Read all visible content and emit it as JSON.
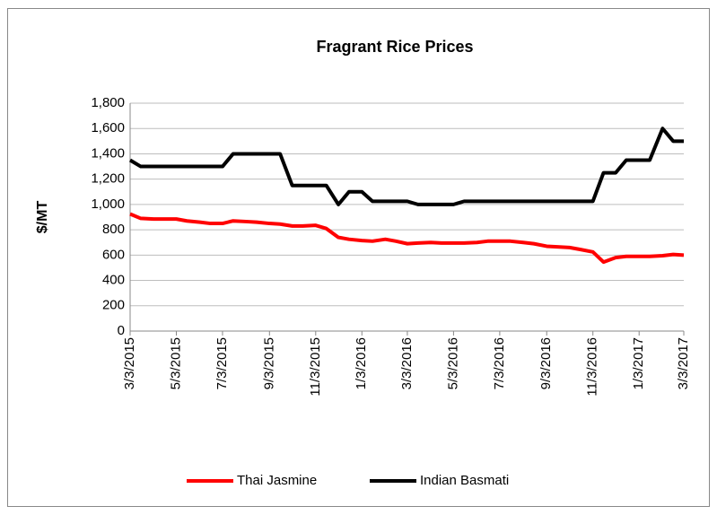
{
  "chart_data": {
    "type": "line",
    "title": "Fragrant Rice Prices",
    "y_label": "$/MT",
    "x": [
      "3/3/2015",
      "3/17/2015",
      "4/3/2015",
      "4/17/2015",
      "5/3/2015",
      "5/17/2015",
      "6/3/2015",
      "6/17/2015",
      "7/3/2015",
      "7/17/2015",
      "8/3/2015",
      "8/17/2015",
      "9/3/2015",
      "9/17/2015",
      "10/3/2015",
      "10/17/2015",
      "11/3/2015",
      "11/17/2015",
      "12/3/2015",
      "12/17/2015",
      "1/3/2016",
      "1/17/2016",
      "2/3/2016",
      "2/17/2016",
      "3/3/2016",
      "3/17/2016",
      "4/3/2016",
      "4/17/2016",
      "5/3/2016",
      "5/17/2016",
      "6/3/2016",
      "6/17/2016",
      "7/3/2016",
      "7/17/2016",
      "8/3/2016",
      "8/17/2016",
      "9/3/2016",
      "9/17/2016",
      "10/3/2016",
      "10/17/2016",
      "11/3/2016",
      "11/17/2016",
      "12/3/2016",
      "12/17/2016",
      "1/3/2017",
      "1/17/2017",
      "2/3/2017",
      "2/17/2017",
      "3/3/2017"
    ],
    "series": [
      {
        "name": "Thai Jasmine",
        "color": "#ff0000",
        "values": [
          925,
          890,
          885,
          885,
          885,
          870,
          860,
          850,
          850,
          870,
          865,
          860,
          850,
          845,
          830,
          830,
          835,
          810,
          740,
          725,
          715,
          710,
          725,
          710,
          690,
          695,
          700,
          695,
          695,
          695,
          700,
          710,
          710,
          710,
          700,
          690,
          670,
          665,
          660,
          645,
          625,
          545,
          580,
          590,
          590,
          590,
          595,
          605,
          600
        ]
      },
      {
        "name": "Indian Basmati",
        "color": "#000000",
        "values": [
          1350,
          1300,
          1300,
          1300,
          1300,
          1300,
          1300,
          1300,
          1300,
          1400,
          1400,
          1400,
          1400,
          1400,
          1150,
          1150,
          1150,
          1150,
          1000,
          1100,
          1100,
          1025,
          1025,
          1025,
          1025,
          1000,
          1000,
          1000,
          1000,
          1025,
          1025,
          1025,
          1025,
          1025,
          1025,
          1025,
          1025,
          1025,
          1025,
          1025,
          1025,
          1250,
          1250,
          1350,
          1350,
          1350,
          1600,
          1500,
          1500
        ]
      }
    ],
    "xlim": [
      "3/3/2015",
      "3/3/2017"
    ],
    "xticks": [
      "3/3/2015",
      "5/3/2015",
      "7/3/2015",
      "9/3/2015",
      "11/3/2015",
      "1/3/2016",
      "3/3/2016",
      "5/3/2016",
      "7/3/2016",
      "9/3/2016",
      "11/3/2016",
      "1/3/2017",
      "3/3/2017"
    ],
    "ylim": [
      0,
      1800
    ],
    "yticks": [
      0,
      200,
      400,
      600,
      800,
      {
        "value": 1000,
        "label": "1,000"
      },
      {
        "value": 1200,
        "label": "1,200"
      },
      {
        "value": 1400,
        "label": "1,400"
      },
      {
        "value": 1600,
        "label": "1,600"
      },
      {
        "value": 1800,
        "label": "1,800"
      }
    ],
    "grid": true,
    "legend": "bottom"
  }
}
